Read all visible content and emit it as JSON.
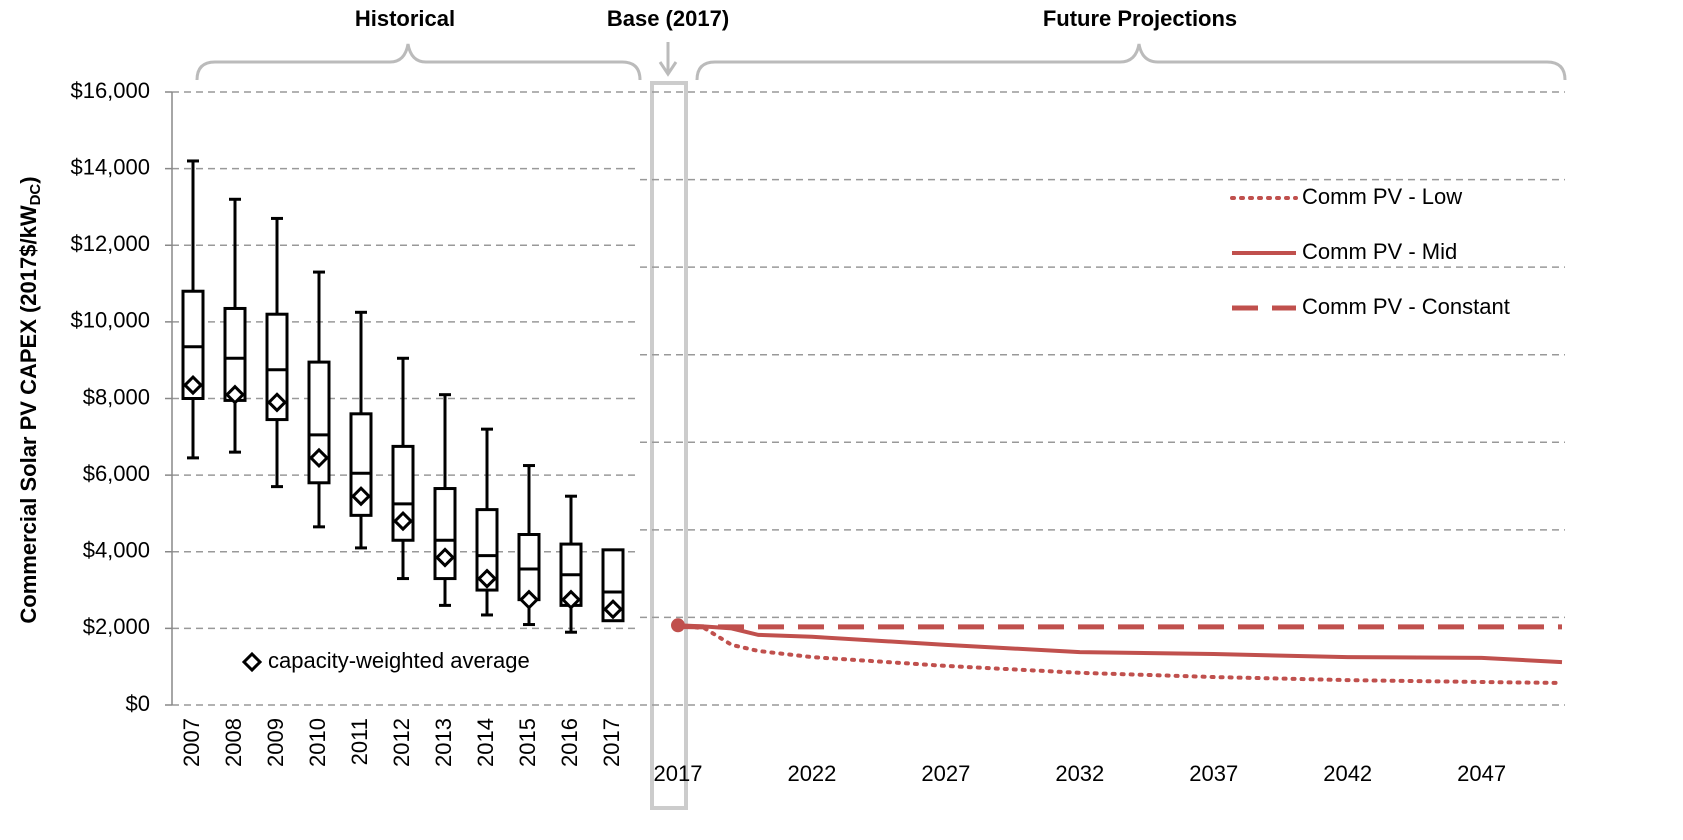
{
  "annotations": {
    "historical": "Historical",
    "base": "Base (2017)",
    "future": "Future Projections"
  },
  "chart_data": [
    {
      "type": "box",
      "ylabel": "Commercial Solar PV CAPEX (2017$/kW",
      "ylabel_sub": "DC",
      "ylabel_end": ")",
      "categories": [
        "2007",
        "2008",
        "2009",
        "2010",
        "2011",
        "2012",
        "2013",
        "2014",
        "2015",
        "2016",
        "2017"
      ],
      "whisker_low": [
        6450,
        6600,
        5700,
        4650,
        4100,
        3300,
        2600,
        2350,
        2100,
        1900,
        null
      ],
      "q1": [
        8000,
        7950,
        7450,
        5800,
        4950,
        4300,
        3300,
        3000,
        2750,
        2600,
        2200
      ],
      "median": [
        9350,
        9050,
        8750,
        7050,
        6050,
        5250,
        4300,
        3900,
        3550,
        3400,
        2950
      ],
      "q3": [
        10800,
        10350,
        10200,
        8950,
        7600,
        6750,
        5650,
        5100,
        4450,
        4200,
        4050
      ],
      "whisker_high": [
        14200,
        13200,
        12700,
        11300,
        10250,
        9050,
        8100,
        7200,
        6250,
        5450,
        null
      ],
      "mean": [
        8350,
        8100,
        7900,
        6450,
        5450,
        4800,
        3850,
        3300,
        2750,
        2750,
        2500
      ],
      "mean_label": "capacity-weighted average",
      "color": "#000000",
      "ylim": [
        0,
        16000
      ],
      "yticks": [
        {
          "value": 0,
          "label": "$0"
        },
        {
          "value": 2000,
          "label": "$2,000"
        },
        {
          "value": 4000,
          "label": "$4,000"
        },
        {
          "value": 6000,
          "label": "$6,000"
        },
        {
          "value": 8000,
          "label": "$8,000"
        },
        {
          "value": 10000,
          "label": "$10,000"
        },
        {
          "value": 12000,
          "label": "$12,000"
        },
        {
          "value": 14000,
          "label": "$14,000"
        },
        {
          "value": 16000,
          "label": "$16,000"
        }
      ],
      "grid": true
    },
    {
      "type": "line",
      "x": [
        2017,
        2018,
        2019,
        2020,
        2022,
        2027,
        2032,
        2037,
        2042,
        2047,
        2050
      ],
      "xlim": [
        2017,
        2050
      ],
      "xticks": [
        2017,
        2022,
        2027,
        2032,
        2037,
        2042,
        2047
      ],
      "ylim": [
        0,
        16000
      ],
      "yticks": [
        0,
        2286,
        4571,
        6857,
        9143,
        11429,
        13714,
        16000
      ],
      "base_value": 2080,
      "grid": true,
      "legend": "upper right",
      "series": [
        {
          "name": "Comm PV - Low",
          "color": "#c0504d",
          "style": "dotted",
          "values": [
            2080,
            2000,
            1570,
            1410,
            1250,
            1020,
            840,
            730,
            650,
            600,
            575
          ]
        },
        {
          "name": "Comm PV - Mid",
          "color": "#c0504d",
          "style": "solid",
          "values": [
            2080,
            2050,
            2000,
            1830,
            1780,
            1570,
            1380,
            1330,
            1250,
            1230,
            1120
          ]
        },
        {
          "name": "Comm PV - Constant",
          "color": "#c0504d",
          "style": "dashed",
          "values": [
            2050,
            2040,
            2040,
            2040,
            2040,
            2040,
            2040,
            2040,
            2040,
            2040,
            2040
          ]
        }
      ]
    }
  ]
}
